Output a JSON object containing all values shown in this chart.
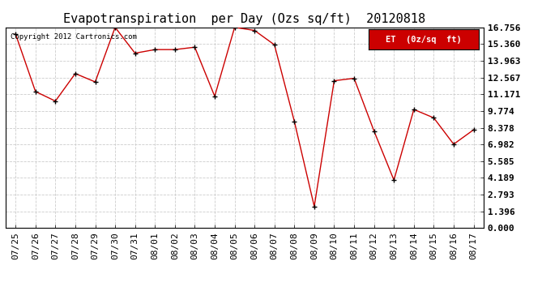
{
  "title": "Evapotranspiration  per Day (Ozs sq/ft)  20120818",
  "copyright_text": "Copyright 2012 Cartronics.com",
  "legend_label": "ET  (0z/sq  ft)",
  "x_labels": [
    "07/25",
    "07/26",
    "07/27",
    "07/28",
    "07/29",
    "07/30",
    "07/31",
    "08/01",
    "08/02",
    "08/03",
    "08/04",
    "08/05",
    "08/06",
    "08/07",
    "08/08",
    "08/09",
    "08/10",
    "08/11",
    "08/12",
    "08/13",
    "08/14",
    "08/15",
    "08/16",
    "08/17"
  ],
  "y_values": [
    16.2,
    11.4,
    10.6,
    12.9,
    12.2,
    16.756,
    14.6,
    14.9,
    14.9,
    15.1,
    11.0,
    16.756,
    16.5,
    15.3,
    8.9,
    1.8,
    12.3,
    12.5,
    8.1,
    4.0,
    9.9,
    9.2,
    7.0,
    8.2
  ],
  "line_color": "#cc0000",
  "marker_color": "#000000",
  "background_color": "#ffffff",
  "grid_color": "#cccccc",
  "y_ticks": [
    0.0,
    1.396,
    2.793,
    4.189,
    5.585,
    6.982,
    8.378,
    9.774,
    11.171,
    12.567,
    13.963,
    15.36,
    16.756
  ],
  "ylim": [
    0.0,
    16.756
  ],
  "title_fontsize": 11,
  "tick_fontsize": 8,
  "legend_bg": "#cc0000",
  "legend_fg": "#ffffff",
  "border_color": "#000000"
}
